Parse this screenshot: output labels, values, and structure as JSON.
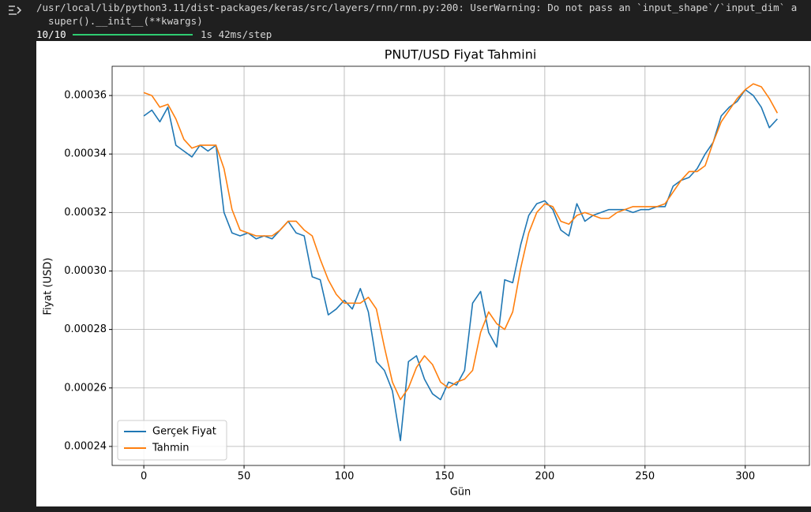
{
  "console": {
    "warning": "/usr/local/lib/python3.11/dist-packages/keras/src/layers/rnn/rnn.py:200: UserWarning: Do not pass an `input_shape`/`input_dim` a",
    "call": "  super().__init__(**kwargs)",
    "progress": "10/10",
    "timing": "1s 42ms/step"
  },
  "chart_data": {
    "type": "line",
    "title": "PNUT/USD Fiyat Tahmini",
    "xlabel": "Gün",
    "ylabel": "Fiyat (USD)",
    "x": [
      0,
      4,
      8,
      12,
      16,
      20,
      24,
      28,
      32,
      36,
      40,
      44,
      48,
      52,
      56,
      60,
      64,
      68,
      72,
      76,
      80,
      84,
      88,
      92,
      96,
      100,
      104,
      108,
      112,
      116,
      120,
      124,
      128,
      132,
      136,
      140,
      144,
      148,
      152,
      156,
      160,
      164,
      168,
      172,
      176,
      180,
      184,
      188,
      192,
      196,
      200,
      204,
      208,
      212,
      216,
      220,
      224,
      228,
      232,
      236,
      240,
      244,
      248,
      252,
      256,
      260,
      264,
      268,
      272,
      276,
      280,
      284,
      288,
      292,
      296,
      300,
      304,
      308,
      312,
      316
    ],
    "series": [
      {
        "name": "Gerçek Fiyat",
        "color": "#1f77b4",
        "values": [
          0.000353,
          0.000355,
          0.000351,
          0.000356,
          0.000343,
          0.000341,
          0.000339,
          0.000343,
          0.000341,
          0.000343,
          0.00032,
          0.000313,
          0.000312,
          0.000313,
          0.000311,
          0.000312,
          0.000311,
          0.000314,
          0.000317,
          0.000313,
          0.000312,
          0.000298,
          0.000297,
          0.000285,
          0.000287,
          0.00029,
          0.000287,
          0.000294,
          0.000286,
          0.000269,
          0.000266,
          0.000259,
          0.000242,
          0.000269,
          0.000271,
          0.000263,
          0.000258,
          0.000256,
          0.000262,
          0.000261,
          0.000266,
          0.000289,
          0.000293,
          0.000279,
          0.000274,
          0.000297,
          0.000296,
          0.000309,
          0.000319,
          0.000323,
          0.000324,
          0.000321,
          0.000314,
          0.000312,
          0.000323,
          0.000317,
          0.000319,
          0.00032,
          0.000321,
          0.000321,
          0.000321,
          0.00032,
          0.000321,
          0.000321,
          0.000322,
          0.000322,
          0.000329,
          0.000331,
          0.000332,
          0.000335,
          0.00034,
          0.000344,
          0.000353,
          0.000356,
          0.000358,
          0.000362,
          0.00036,
          0.000356,
          0.000349,
          0.000352
        ]
      },
      {
        "name": "Tahmin",
        "color": "#ff7f0e",
        "values": [
          0.000361,
          0.00036,
          0.000356,
          0.000357,
          0.000352,
          0.000345,
          0.000342,
          0.000343,
          0.000343,
          0.000343,
          0.000335,
          0.000321,
          0.000314,
          0.000313,
          0.000312,
          0.000312,
          0.000312,
          0.000314,
          0.000317,
          0.000317,
          0.000314,
          0.000312,
          0.000304,
          0.000297,
          0.000292,
          0.000289,
          0.000289,
          0.000289,
          0.000291,
          0.000287,
          0.000274,
          0.000262,
          0.000256,
          0.00026,
          0.000267,
          0.000271,
          0.000268,
          0.000262,
          0.00026,
          0.000262,
          0.000263,
          0.000266,
          0.000279,
          0.000286,
          0.000282,
          0.00028,
          0.000286,
          0.000301,
          0.000313,
          0.00032,
          0.000323,
          0.000322,
          0.000317,
          0.000316,
          0.000319,
          0.00032,
          0.000319,
          0.000318,
          0.000318,
          0.00032,
          0.000321,
          0.000322,
          0.000322,
          0.000322,
          0.000322,
          0.000323,
          0.000327,
          0.000331,
          0.000334,
          0.000334,
          0.000336,
          0.000344,
          0.000351,
          0.000355,
          0.000359,
          0.000362,
          0.000364,
          0.000363,
          0.000359,
          0.000354
        ]
      }
    ],
    "xlim": [
      -15.8,
      332
    ],
    "ylim": [
      0.0002335,
      0.00037
    ],
    "xticks": [
      0,
      50,
      100,
      150,
      200,
      250,
      300
    ],
    "yticks": [
      0.00024,
      0.00026,
      0.00028,
      {
        "value": 0.0003,
        "label": "0.00030"
      },
      0.00032,
      0.00034,
      0.00036
    ],
    "grid": true,
    "legend": "lower left"
  }
}
